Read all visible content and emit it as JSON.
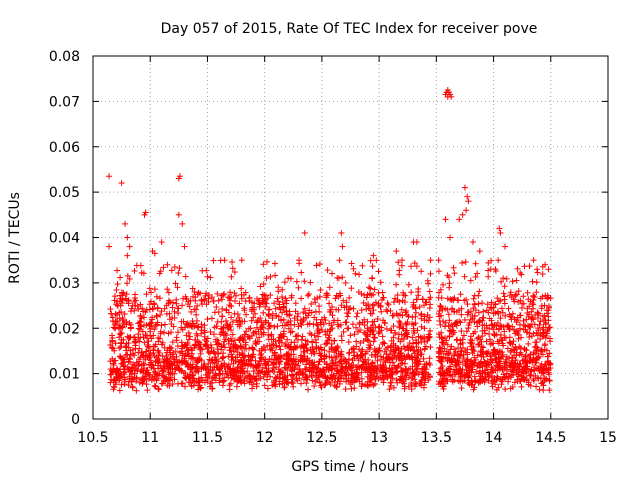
{
  "chart_data": {
    "type": "scatter",
    "title": "Day 057 of 2015, Rate Of TEC Index for receiver pove",
    "xlabel": "GPS time / hours",
    "ylabel": "ROTI / TECUs",
    "xlim": [
      10.5,
      15
    ],
    "ylim": [
      0,
      0.08
    ],
    "xticks": [
      10.5,
      11,
      11.5,
      12,
      12.5,
      13,
      13.5,
      14,
      14.5,
      15
    ],
    "xtick_labels": [
      "10.5",
      "11",
      "11.5",
      "12",
      "12.5",
      "13",
      "13.5",
      "14",
      "14.5",
      "15"
    ],
    "yticks": [
      0,
      0.01,
      0.02,
      0.03,
      0.04,
      0.05,
      0.06,
      0.07,
      0.08
    ],
    "ytick_labels": [
      "0",
      "0.01",
      "0.02",
      "0.03",
      "0.04",
      "0.05",
      "0.06",
      "0.07",
      "0.08"
    ],
    "grid": true,
    "marker": "+",
    "color": "#ff0000",
    "series": [
      {
        "name": "ROTI",
        "points": [
          [
            10.64,
            0.0535
          ],
          [
            10.75,
            0.052
          ],
          [
            10.64,
            0.038
          ],
          [
            10.78,
            0.043
          ],
          [
            10.8,
            0.04
          ],
          [
            10.8,
            0.036
          ],
          [
            10.82,
            0.038
          ],
          [
            10.95,
            0.045
          ],
          [
            10.96,
            0.0455
          ],
          [
            11.02,
            0.037
          ],
          [
            11.04,
            0.0365
          ],
          [
            11.1,
            0.039
          ],
          [
            11.15,
            0.034
          ],
          [
            11.25,
            0.053
          ],
          [
            11.26,
            0.0535
          ],
          [
            11.25,
            0.045
          ],
          [
            11.28,
            0.043
          ],
          [
            11.3,
            0.038
          ],
          [
            11.65,
            0.035
          ],
          [
            11.8,
            0.035
          ],
          [
            12.35,
            0.041
          ],
          [
            12.3,
            0.035
          ],
          [
            12.67,
            0.041
          ],
          [
            12.68,
            0.038
          ],
          [
            12.95,
            0.036
          ],
          [
            13.15,
            0.037
          ],
          [
            13.2,
            0.035
          ],
          [
            13.3,
            0.039
          ],
          [
            13.33,
            0.039
          ],
          [
            13.45,
            0.035
          ],
          [
            13.52,
            0.035
          ],
          [
            13.58,
            0.044
          ],
          [
            13.62,
            0.04
          ],
          [
            13.58,
            0.0715
          ],
          [
            13.59,
            0.072
          ],
          [
            13.6,
            0.0725
          ],
          [
            13.61,
            0.072
          ],
          [
            13.62,
            0.0715
          ],
          [
            13.6,
            0.071
          ],
          [
            13.63,
            0.071
          ],
          [
            13.73,
            0.045
          ],
          [
            13.75,
            0.051
          ],
          [
            13.77,
            0.049
          ],
          [
            13.76,
            0.046
          ],
          [
            13.78,
            0.048
          ],
          [
            13.7,
            0.044
          ],
          [
            13.82,
            0.039
          ],
          [
            13.88,
            0.037
          ],
          [
            14.05,
            0.042
          ],
          [
            14.06,
            0.041
          ],
          [
            14.1,
            0.038
          ],
          [
            14.35,
            0.035
          ],
          [
            14.38,
            0.033
          ],
          [
            14.45,
            0.034
          ],
          [
            14.48,
            0.033
          ]
        ]
      }
    ]
  }
}
